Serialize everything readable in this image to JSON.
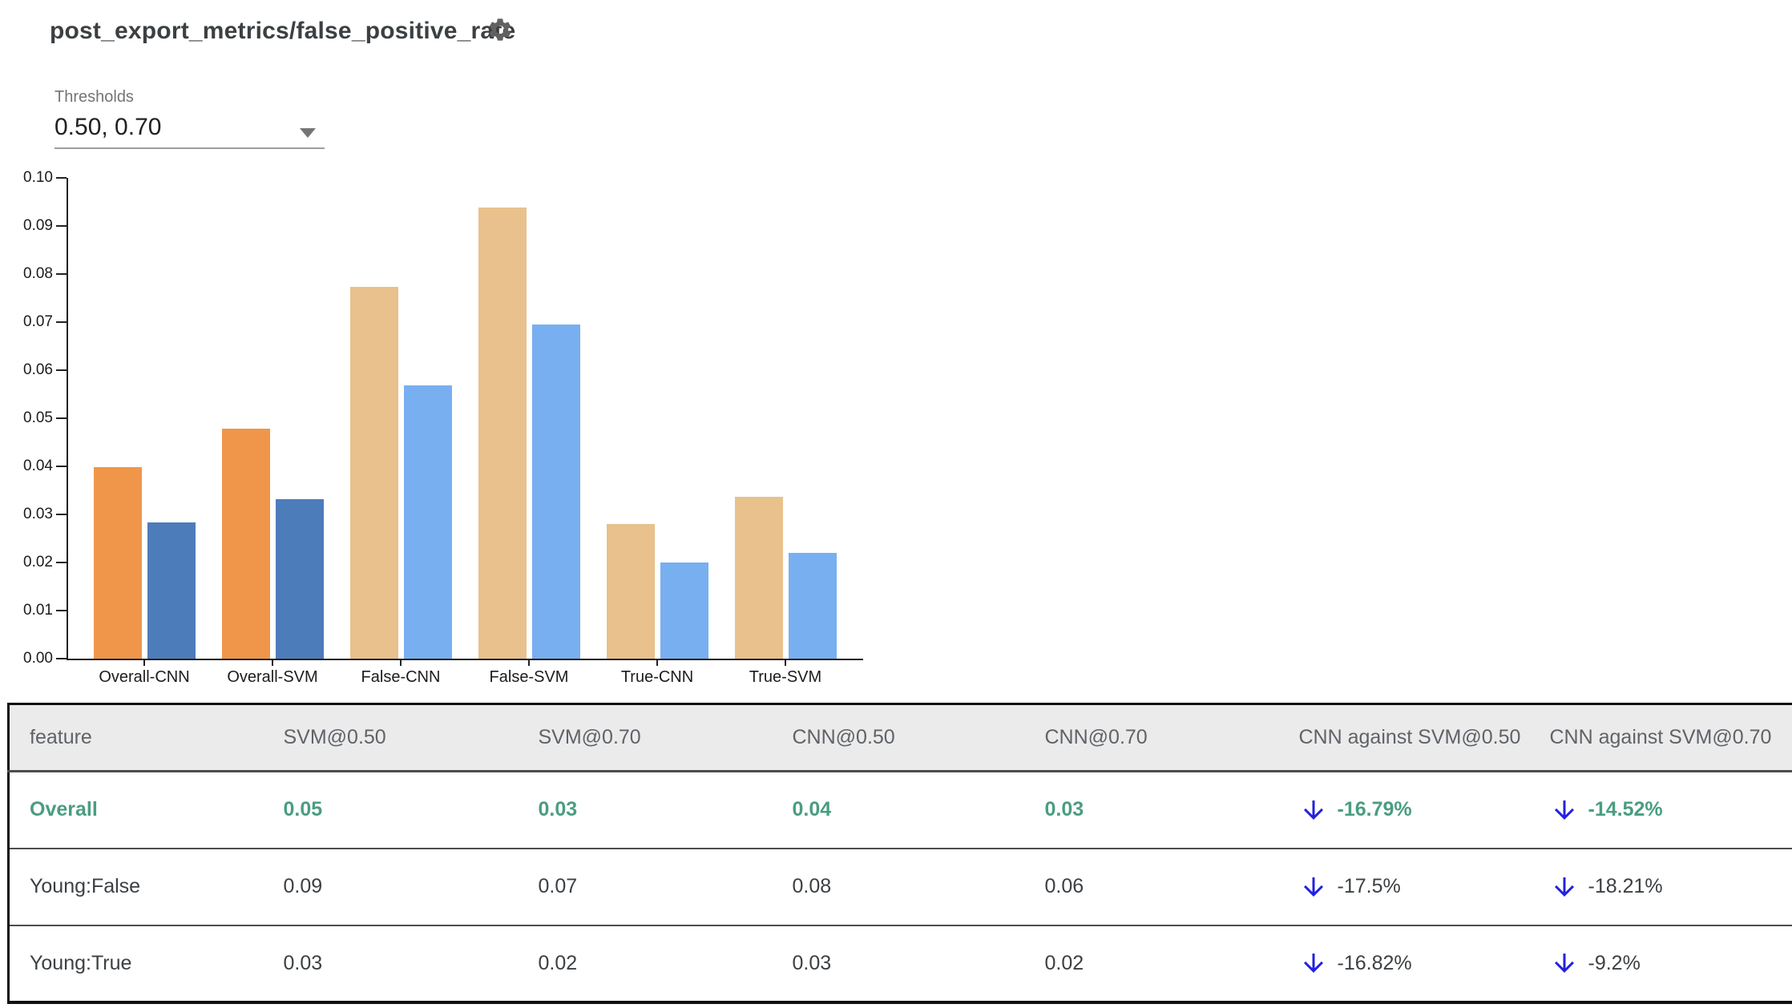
{
  "page": {
    "title": "post_export_metrics/false_positive_rate"
  },
  "icons": {
    "settings": "gear-icon",
    "dropdown": "chevron-down-icon",
    "decrease": "arrow-down-icon"
  },
  "thresholds": {
    "label": "Thresholds",
    "value": "0.50, 0.70"
  },
  "colors": {
    "bar_threshold_050_overall": "#f0964a",
    "bar_threshold_070_overall": "#4d7cba",
    "bar_threshold_050_slice": "#e8c18d",
    "bar_threshold_070_slice": "#78aff0",
    "accent_green": "#4a9d82",
    "arrow_blue": "#2222dd",
    "header_bg": "#ebebeb",
    "header_text": "#5f6368",
    "body_text": "#3c4043"
  },
  "chart_data": {
    "type": "bar",
    "title": "post_export_metrics/false_positive_rate",
    "categories": [
      "Overall-CNN",
      "Overall-SVM",
      "False-CNN",
      "False-SVM",
      "True-CNN",
      "True-SVM"
    ],
    "overall_flags": [
      true,
      true,
      false,
      false,
      false,
      false
    ],
    "series": [
      {
        "name": "threshold 0.50",
        "values": [
          0.0398,
          0.0478,
          0.0774,
          0.0938,
          0.028,
          0.0337
        ]
      },
      {
        "name": "threshold 0.70",
        "values": [
          0.0284,
          0.0332,
          0.0568,
          0.0695,
          0.02,
          0.022
        ]
      }
    ],
    "xlabel": "",
    "ylabel": "",
    "ylim": [
      0,
      0.1
    ],
    "y_tick_step": 0.01,
    "y_tick_labels_top_down": [
      "0.10",
      "0.09",
      "0.08",
      "0.07",
      "0.06",
      "0.05",
      "0.04",
      "0.03",
      "0.02",
      "0.01",
      "0.00"
    ],
    "grid": false,
    "legend_position": "none"
  },
  "table": {
    "columns": [
      "feature",
      "SVM@0.50",
      "SVM@0.70",
      "CNN@0.50",
      "CNN@0.70",
      "CNN against SVM@0.50",
      "CNN against SVM@0.70"
    ],
    "rows": [
      {
        "feature": "Overall",
        "values": [
          "0.05",
          "0.03",
          "0.04",
          "0.03"
        ],
        "deltas": [
          "-16.79%",
          "-14.52%"
        ],
        "highlight": true
      },
      {
        "feature": "Young:False",
        "values": [
          "0.09",
          "0.07",
          "0.08",
          "0.06"
        ],
        "deltas": [
          "-17.5%",
          "-18.21%"
        ],
        "highlight": false
      },
      {
        "feature": "Young:True",
        "values": [
          "0.03",
          "0.02",
          "0.03",
          "0.02"
        ],
        "deltas": [
          "-16.82%",
          "-9.2%"
        ],
        "highlight": false
      }
    ]
  }
}
